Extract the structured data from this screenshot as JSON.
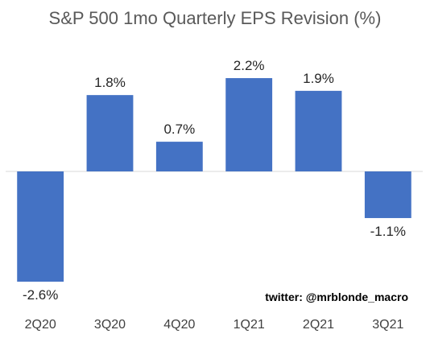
{
  "chart_data": {
    "type": "bar",
    "title": "S&P 500 1mo Quarterly EPS Revision (%)",
    "xlabel": "",
    "ylabel": "",
    "categories": [
      "2Q20",
      "3Q20",
      "4Q20",
      "1Q21",
      "2Q21",
      "3Q21"
    ],
    "values": [
      -2.6,
      1.8,
      0.7,
      2.2,
      1.9,
      -1.1
    ],
    "data_labels": [
      "-2.6%",
      "1.8%",
      "0.7%",
      "2.2%",
      "1.9%",
      "-1.1%"
    ],
    "ylim": [
      -2.6,
      2.2
    ],
    "grid": false,
    "legend": "none",
    "bar_color": "#4472C4",
    "annotation": "twitter: @mrblonde_macro"
  }
}
